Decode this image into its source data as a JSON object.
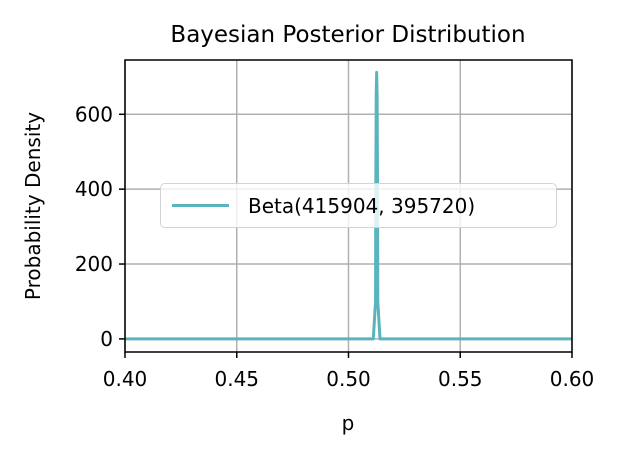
{
  "chart_data": {
    "type": "line",
    "title": "Bayesian Posterior Distribution",
    "xlabel": "p",
    "ylabel": "Probability Density",
    "xlim": [
      0.4,
      0.6
    ],
    "ylim": [
      -35,
      745
    ],
    "x_ticks": [
      "0.40",
      "0.45",
      "0.50",
      "0.55",
      "0.60"
    ],
    "y_ticks": [
      "0",
      "200",
      "400",
      "600"
    ],
    "grid": true,
    "legend_position": "center-right",
    "series": [
      {
        "name": "Beta(415904, 395720)",
        "color": "#5ab4bd",
        "x": [
          0.4,
          0.5111,
          0.5121,
          0.5122,
          0.5124,
          0.5126,
          0.5128,
          0.513,
          0.5131,
          0.5141,
          0.6
        ],
        "y": [
          0,
          0,
          100,
          380,
          650,
          712,
          650,
          380,
          100,
          0,
          0
        ]
      }
    ]
  }
}
